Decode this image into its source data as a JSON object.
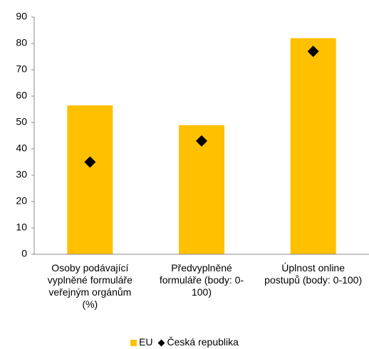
{
  "chart_data": {
    "type": "bar",
    "categories": [
      "Osoby podávající vyplněné formuláře veřejným orgánům (%)",
      "Předvyplněné formuláře (body: 0-100)",
      "Úplnost online postupů (body: 0-100)"
    ],
    "series": [
      {
        "name": "EU",
        "type": "bar",
        "color": "#ffc000",
        "values": [
          56.5,
          49,
          82
        ]
      },
      {
        "name": "Česká republika",
        "type": "scatter",
        "color": "#000000",
        "values": [
          35,
          43,
          77
        ]
      }
    ],
    "ylim": [
      0,
      90
    ],
    "yticks": [
      0,
      10,
      20,
      30,
      40,
      50,
      60,
      70,
      80,
      90
    ],
    "grid": false
  }
}
